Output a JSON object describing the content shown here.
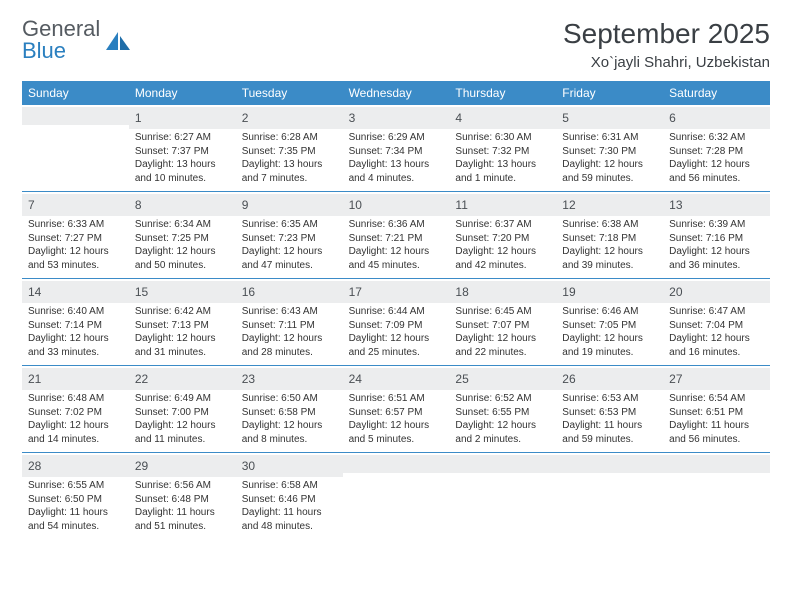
{
  "brand": {
    "part1": "General",
    "part2": "Blue"
  },
  "title": "September 2025",
  "location": "Xo`jayli Shahri, Uzbekistan",
  "colors": {
    "header_bg": "#3b8bc7",
    "daynum_bg": "#ecedee",
    "week_border": "#3b8bc7",
    "text": "#333333",
    "title_text": "#3a3f44",
    "logo_gray": "#555b61",
    "logo_blue": "#2a7fbf",
    "background": "#ffffff"
  },
  "daynames": [
    "Sunday",
    "Monday",
    "Tuesday",
    "Wednesday",
    "Thursday",
    "Friday",
    "Saturday"
  ],
  "weeks": [
    [
      {
        "n": "",
        "sr": "",
        "ss": "",
        "dl": ""
      },
      {
        "n": "1",
        "sr": "Sunrise: 6:27 AM",
        "ss": "Sunset: 7:37 PM",
        "dl": "Daylight: 13 hours and 10 minutes."
      },
      {
        "n": "2",
        "sr": "Sunrise: 6:28 AM",
        "ss": "Sunset: 7:35 PM",
        "dl": "Daylight: 13 hours and 7 minutes."
      },
      {
        "n": "3",
        "sr": "Sunrise: 6:29 AM",
        "ss": "Sunset: 7:34 PM",
        "dl": "Daylight: 13 hours and 4 minutes."
      },
      {
        "n": "4",
        "sr": "Sunrise: 6:30 AM",
        "ss": "Sunset: 7:32 PM",
        "dl": "Daylight: 13 hours and 1 minute."
      },
      {
        "n": "5",
        "sr": "Sunrise: 6:31 AM",
        "ss": "Sunset: 7:30 PM",
        "dl": "Daylight: 12 hours and 59 minutes."
      },
      {
        "n": "6",
        "sr": "Sunrise: 6:32 AM",
        "ss": "Sunset: 7:28 PM",
        "dl": "Daylight: 12 hours and 56 minutes."
      }
    ],
    [
      {
        "n": "7",
        "sr": "Sunrise: 6:33 AM",
        "ss": "Sunset: 7:27 PM",
        "dl": "Daylight: 12 hours and 53 minutes."
      },
      {
        "n": "8",
        "sr": "Sunrise: 6:34 AM",
        "ss": "Sunset: 7:25 PM",
        "dl": "Daylight: 12 hours and 50 minutes."
      },
      {
        "n": "9",
        "sr": "Sunrise: 6:35 AM",
        "ss": "Sunset: 7:23 PM",
        "dl": "Daylight: 12 hours and 47 minutes."
      },
      {
        "n": "10",
        "sr": "Sunrise: 6:36 AM",
        "ss": "Sunset: 7:21 PM",
        "dl": "Daylight: 12 hours and 45 minutes."
      },
      {
        "n": "11",
        "sr": "Sunrise: 6:37 AM",
        "ss": "Sunset: 7:20 PM",
        "dl": "Daylight: 12 hours and 42 minutes."
      },
      {
        "n": "12",
        "sr": "Sunrise: 6:38 AM",
        "ss": "Sunset: 7:18 PM",
        "dl": "Daylight: 12 hours and 39 minutes."
      },
      {
        "n": "13",
        "sr": "Sunrise: 6:39 AM",
        "ss": "Sunset: 7:16 PM",
        "dl": "Daylight: 12 hours and 36 minutes."
      }
    ],
    [
      {
        "n": "14",
        "sr": "Sunrise: 6:40 AM",
        "ss": "Sunset: 7:14 PM",
        "dl": "Daylight: 12 hours and 33 minutes."
      },
      {
        "n": "15",
        "sr": "Sunrise: 6:42 AM",
        "ss": "Sunset: 7:13 PM",
        "dl": "Daylight: 12 hours and 31 minutes."
      },
      {
        "n": "16",
        "sr": "Sunrise: 6:43 AM",
        "ss": "Sunset: 7:11 PM",
        "dl": "Daylight: 12 hours and 28 minutes."
      },
      {
        "n": "17",
        "sr": "Sunrise: 6:44 AM",
        "ss": "Sunset: 7:09 PM",
        "dl": "Daylight: 12 hours and 25 minutes."
      },
      {
        "n": "18",
        "sr": "Sunrise: 6:45 AM",
        "ss": "Sunset: 7:07 PM",
        "dl": "Daylight: 12 hours and 22 minutes."
      },
      {
        "n": "19",
        "sr": "Sunrise: 6:46 AM",
        "ss": "Sunset: 7:05 PM",
        "dl": "Daylight: 12 hours and 19 minutes."
      },
      {
        "n": "20",
        "sr": "Sunrise: 6:47 AM",
        "ss": "Sunset: 7:04 PM",
        "dl": "Daylight: 12 hours and 16 minutes."
      }
    ],
    [
      {
        "n": "21",
        "sr": "Sunrise: 6:48 AM",
        "ss": "Sunset: 7:02 PM",
        "dl": "Daylight: 12 hours and 14 minutes."
      },
      {
        "n": "22",
        "sr": "Sunrise: 6:49 AM",
        "ss": "Sunset: 7:00 PM",
        "dl": "Daylight: 12 hours and 11 minutes."
      },
      {
        "n": "23",
        "sr": "Sunrise: 6:50 AM",
        "ss": "Sunset: 6:58 PM",
        "dl": "Daylight: 12 hours and 8 minutes."
      },
      {
        "n": "24",
        "sr": "Sunrise: 6:51 AM",
        "ss": "Sunset: 6:57 PM",
        "dl": "Daylight: 12 hours and 5 minutes."
      },
      {
        "n": "25",
        "sr": "Sunrise: 6:52 AM",
        "ss": "Sunset: 6:55 PM",
        "dl": "Daylight: 12 hours and 2 minutes."
      },
      {
        "n": "26",
        "sr": "Sunrise: 6:53 AM",
        "ss": "Sunset: 6:53 PM",
        "dl": "Daylight: 11 hours and 59 minutes."
      },
      {
        "n": "27",
        "sr": "Sunrise: 6:54 AM",
        "ss": "Sunset: 6:51 PM",
        "dl": "Daylight: 11 hours and 56 minutes."
      }
    ],
    [
      {
        "n": "28",
        "sr": "Sunrise: 6:55 AM",
        "ss": "Sunset: 6:50 PM",
        "dl": "Daylight: 11 hours and 54 minutes."
      },
      {
        "n": "29",
        "sr": "Sunrise: 6:56 AM",
        "ss": "Sunset: 6:48 PM",
        "dl": "Daylight: 11 hours and 51 minutes."
      },
      {
        "n": "30",
        "sr": "Sunrise: 6:58 AM",
        "ss": "Sunset: 6:46 PM",
        "dl": "Daylight: 11 hours and 48 minutes."
      },
      {
        "n": "",
        "sr": "",
        "ss": "",
        "dl": ""
      },
      {
        "n": "",
        "sr": "",
        "ss": "",
        "dl": ""
      },
      {
        "n": "",
        "sr": "",
        "ss": "",
        "dl": ""
      },
      {
        "n": "",
        "sr": "",
        "ss": "",
        "dl": ""
      }
    ]
  ]
}
